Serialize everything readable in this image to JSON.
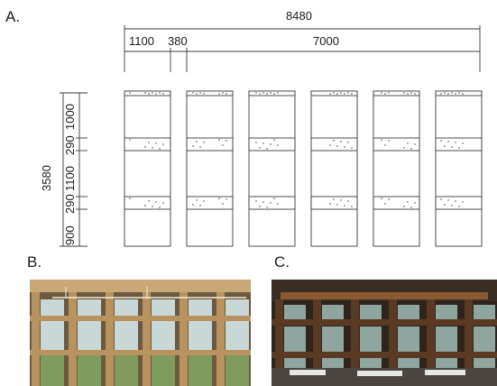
{
  "panels": {
    "a_label": "A.",
    "b_label": "B.",
    "c_label": "C."
  },
  "drawing": {
    "overall_width": "8480",
    "segment_1": "1100",
    "segment_2": "380",
    "segment_3": "7000",
    "overall_height": "3580",
    "height_segments": [
      "1000",
      "290",
      "1100",
      "290",
      "900"
    ]
  },
  "colors": {
    "line": "#3a3a3a",
    "photo_b_frame": "#b8935f",
    "photo_c_frame": "#5a3a22"
  }
}
